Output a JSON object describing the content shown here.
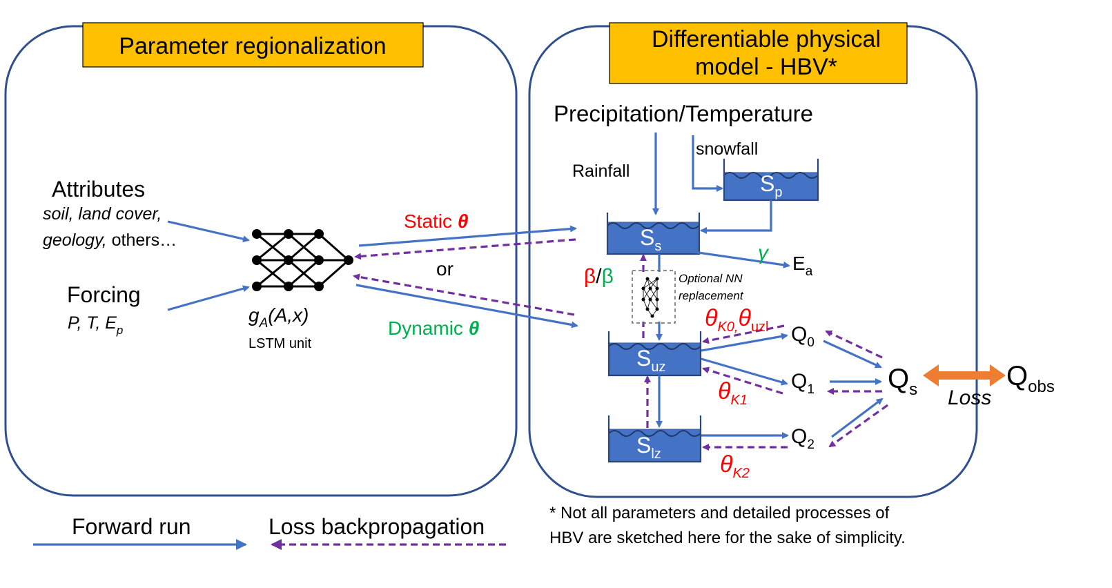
{
  "left_panel": {
    "title": "Parameter regionalization",
    "attributes_label": "Attributes",
    "attributes_detail_italic": "soil, land cover,",
    "attributes_detail_line2_italic": "geology,",
    "attributes_detail_line2_normal": " others…",
    "forcing_label": "Forcing",
    "forcing_detail": "P, T, E",
    "forcing_detail_sub": "p",
    "lstm_func_g": "g",
    "lstm_func_sub": "A",
    "lstm_func_args": "(A,x)",
    "lstm_unit_label": "LSTM unit"
  },
  "connector": {
    "static_label": "Static ",
    "static_symbol": "θ",
    "or_label": "or",
    "dynamic_label": "Dynamic ",
    "dynamic_symbol": "θ"
  },
  "right_panel": {
    "title_line1": "Differentiable physical",
    "title_line2": "model - HBV*",
    "precip_label": "Precipitation/Temperature",
    "rainfall_label": "Rainfall",
    "snowfall_label": "snowfall",
    "tank_sp": "S",
    "tank_sp_sub": "p",
    "tank_ss": "S",
    "tank_ss_sub": "s",
    "tank_suz": "S",
    "tank_suz_sub": "uz",
    "tank_slz": "S",
    "tank_slz_sub": "lz",
    "gamma": "γ",
    "ea": "E",
    "ea_sub": "a",
    "beta_red": "β",
    "beta_slash": "/",
    "beta_green": "β",
    "optional_nn_line1": "Optional NN",
    "optional_nn_line2": "replacement",
    "theta_k0_symbol": "θ",
    "theta_k0_sub": "K0,",
    "theta_uzl_symbol": "θ",
    "theta_uzl_sub": "uzl",
    "theta_k1_symbol": "θ",
    "theta_k1_sub": "K1",
    "theta_k2_symbol": "θ",
    "theta_k2_sub": "K2",
    "q0": "Q",
    "q0_sub": "0",
    "q1": "Q",
    "q1_sub": "1",
    "q2": "Q",
    "q2_sub": "2",
    "qs": "Q",
    "qs_sub": "s",
    "qobs": "Q",
    "qobs_sub": "obs",
    "loss_label": "Loss"
  },
  "legend": {
    "forward_label": "Forward run",
    "backward_label": "Loss backpropagation"
  },
  "footnote": {
    "line1": "* Not all parameters and detailed processes of",
    "line2": "HBV are sketched here for the sake of simplicity."
  },
  "colors": {
    "forward_arrow": "#4472c4",
    "backprop_arrow": "#7030a0",
    "title_box": "#ffc000",
    "tank_fill": "#4472c4",
    "loss_arrow": "#ed7d31",
    "parameter_red": "#ff0000",
    "parameter_green": "#00b050"
  }
}
